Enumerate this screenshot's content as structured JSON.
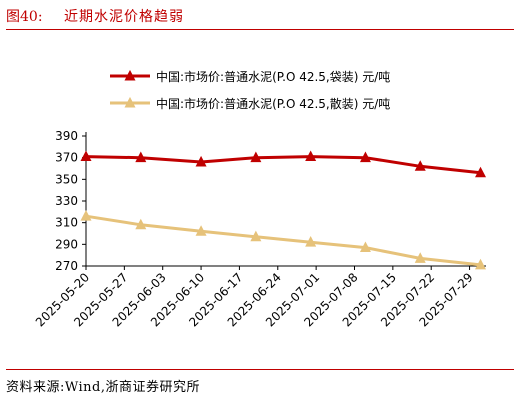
{
  "figure": {
    "number": "图40:",
    "title": "近期水泥价格趋弱"
  },
  "source": "资料来源:Wind,浙商证券研究所",
  "colors": {
    "accent": "#c00000",
    "series_bagged": "#c00000",
    "series_bulk": "#e6c27a"
  },
  "chart_data": {
    "type": "line",
    "title": "",
    "xlabel": "",
    "ylabel": "",
    "ylim": [
      270,
      390
    ],
    "yticks": [
      270,
      290,
      310,
      330,
      350,
      370,
      390
    ],
    "grid": false,
    "legend_position": "top",
    "xticks": [
      "2025-05-20",
      "2025-05-27",
      "2025-06-03",
      "2025-06-10",
      "2025-06-17",
      "2025-06-24",
      "2025-07-01",
      "2025-07-08",
      "2025-07-15",
      "2025-07-22",
      "2025-07-29"
    ],
    "x_range": [
      "2025-05-20",
      "2025-08-01"
    ],
    "series": [
      {
        "name": "中国:市场价:普通水泥(P.O 42.5,袋装) 元/吨",
        "marker": "triangle",
        "points": [
          {
            "x": "2025-05-20",
            "y": 371
          },
          {
            "x": "2025-05-30",
            "y": 370
          },
          {
            "x": "2025-06-10",
            "y": 366
          },
          {
            "x": "2025-06-20",
            "y": 370
          },
          {
            "x": "2025-06-30",
            "y": 371
          },
          {
            "x": "2025-07-10",
            "y": 370
          },
          {
            "x": "2025-07-20",
            "y": 362
          },
          {
            "x": "2025-07-31",
            "y": 356
          }
        ]
      },
      {
        "name": "中国:市场价:普通水泥(P.O 42.5,散装) 元/吨",
        "marker": "triangle",
        "points": [
          {
            "x": "2025-05-20",
            "y": 316
          },
          {
            "x": "2025-05-30",
            "y": 308
          },
          {
            "x": "2025-06-10",
            "y": 302
          },
          {
            "x": "2025-06-20",
            "y": 297
          },
          {
            "x": "2025-06-30",
            "y": 292
          },
          {
            "x": "2025-07-10",
            "y": 287
          },
          {
            "x": "2025-07-20",
            "y": 277
          },
          {
            "x": "2025-07-31",
            "y": 271
          }
        ]
      }
    ]
  }
}
